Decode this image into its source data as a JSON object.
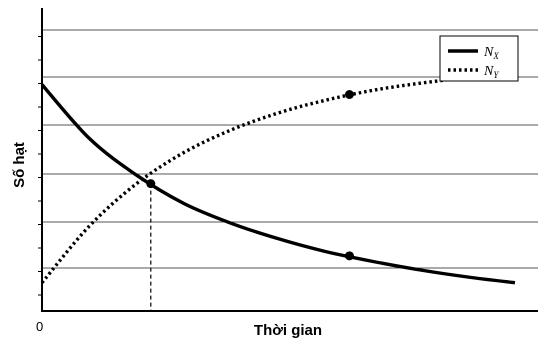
{
  "chart_data": {
    "type": "line",
    "xlabel": "Thời gian",
    "ylabel": "Số hạt",
    "origin_label": "0",
    "xlim": [
      0,
      10
    ],
    "ylim": [
      0,
      10
    ],
    "grid": true,
    "legend_position": "top-right",
    "series": [
      {
        "name": "N_X",
        "legend_main": "N",
        "legend_sub": "X",
        "style": "solid",
        "color": "#000000",
        "x": [
          0,
          1,
          2,
          3,
          4,
          5,
          6,
          7,
          8,
          9,
          10
        ],
        "y": [
          8.0,
          6.1,
          4.8,
          3.8,
          3.1,
          2.55,
          2.1,
          1.75,
          1.45,
          1.2,
          1.0
        ]
      },
      {
        "name": "N_Y",
        "legend_main": "N",
        "legend_sub": "Y",
        "style": "dotted",
        "color": "#000000",
        "x": [
          0,
          1,
          2,
          3,
          4,
          5,
          6,
          7,
          8,
          9,
          10
        ],
        "y": [
          1.0,
          3.0,
          4.5,
          5.6,
          6.4,
          7.0,
          7.45,
          7.8,
          8.05,
          8.25,
          8.4
        ]
      }
    ],
    "markers": [
      {
        "series": "N_X",
        "x": 6.5,
        "y": 1.95
      },
      {
        "series": "N_Y",
        "x": 6.5,
        "y": 7.65
      },
      {
        "series": "intersection",
        "x": 2.3,
        "y": 4.5
      }
    ],
    "guide_x": 2.3,
    "gridlines_y": [
      1,
      2,
      3,
      4,
      5,
      6,
      7,
      8,
      9
    ]
  }
}
